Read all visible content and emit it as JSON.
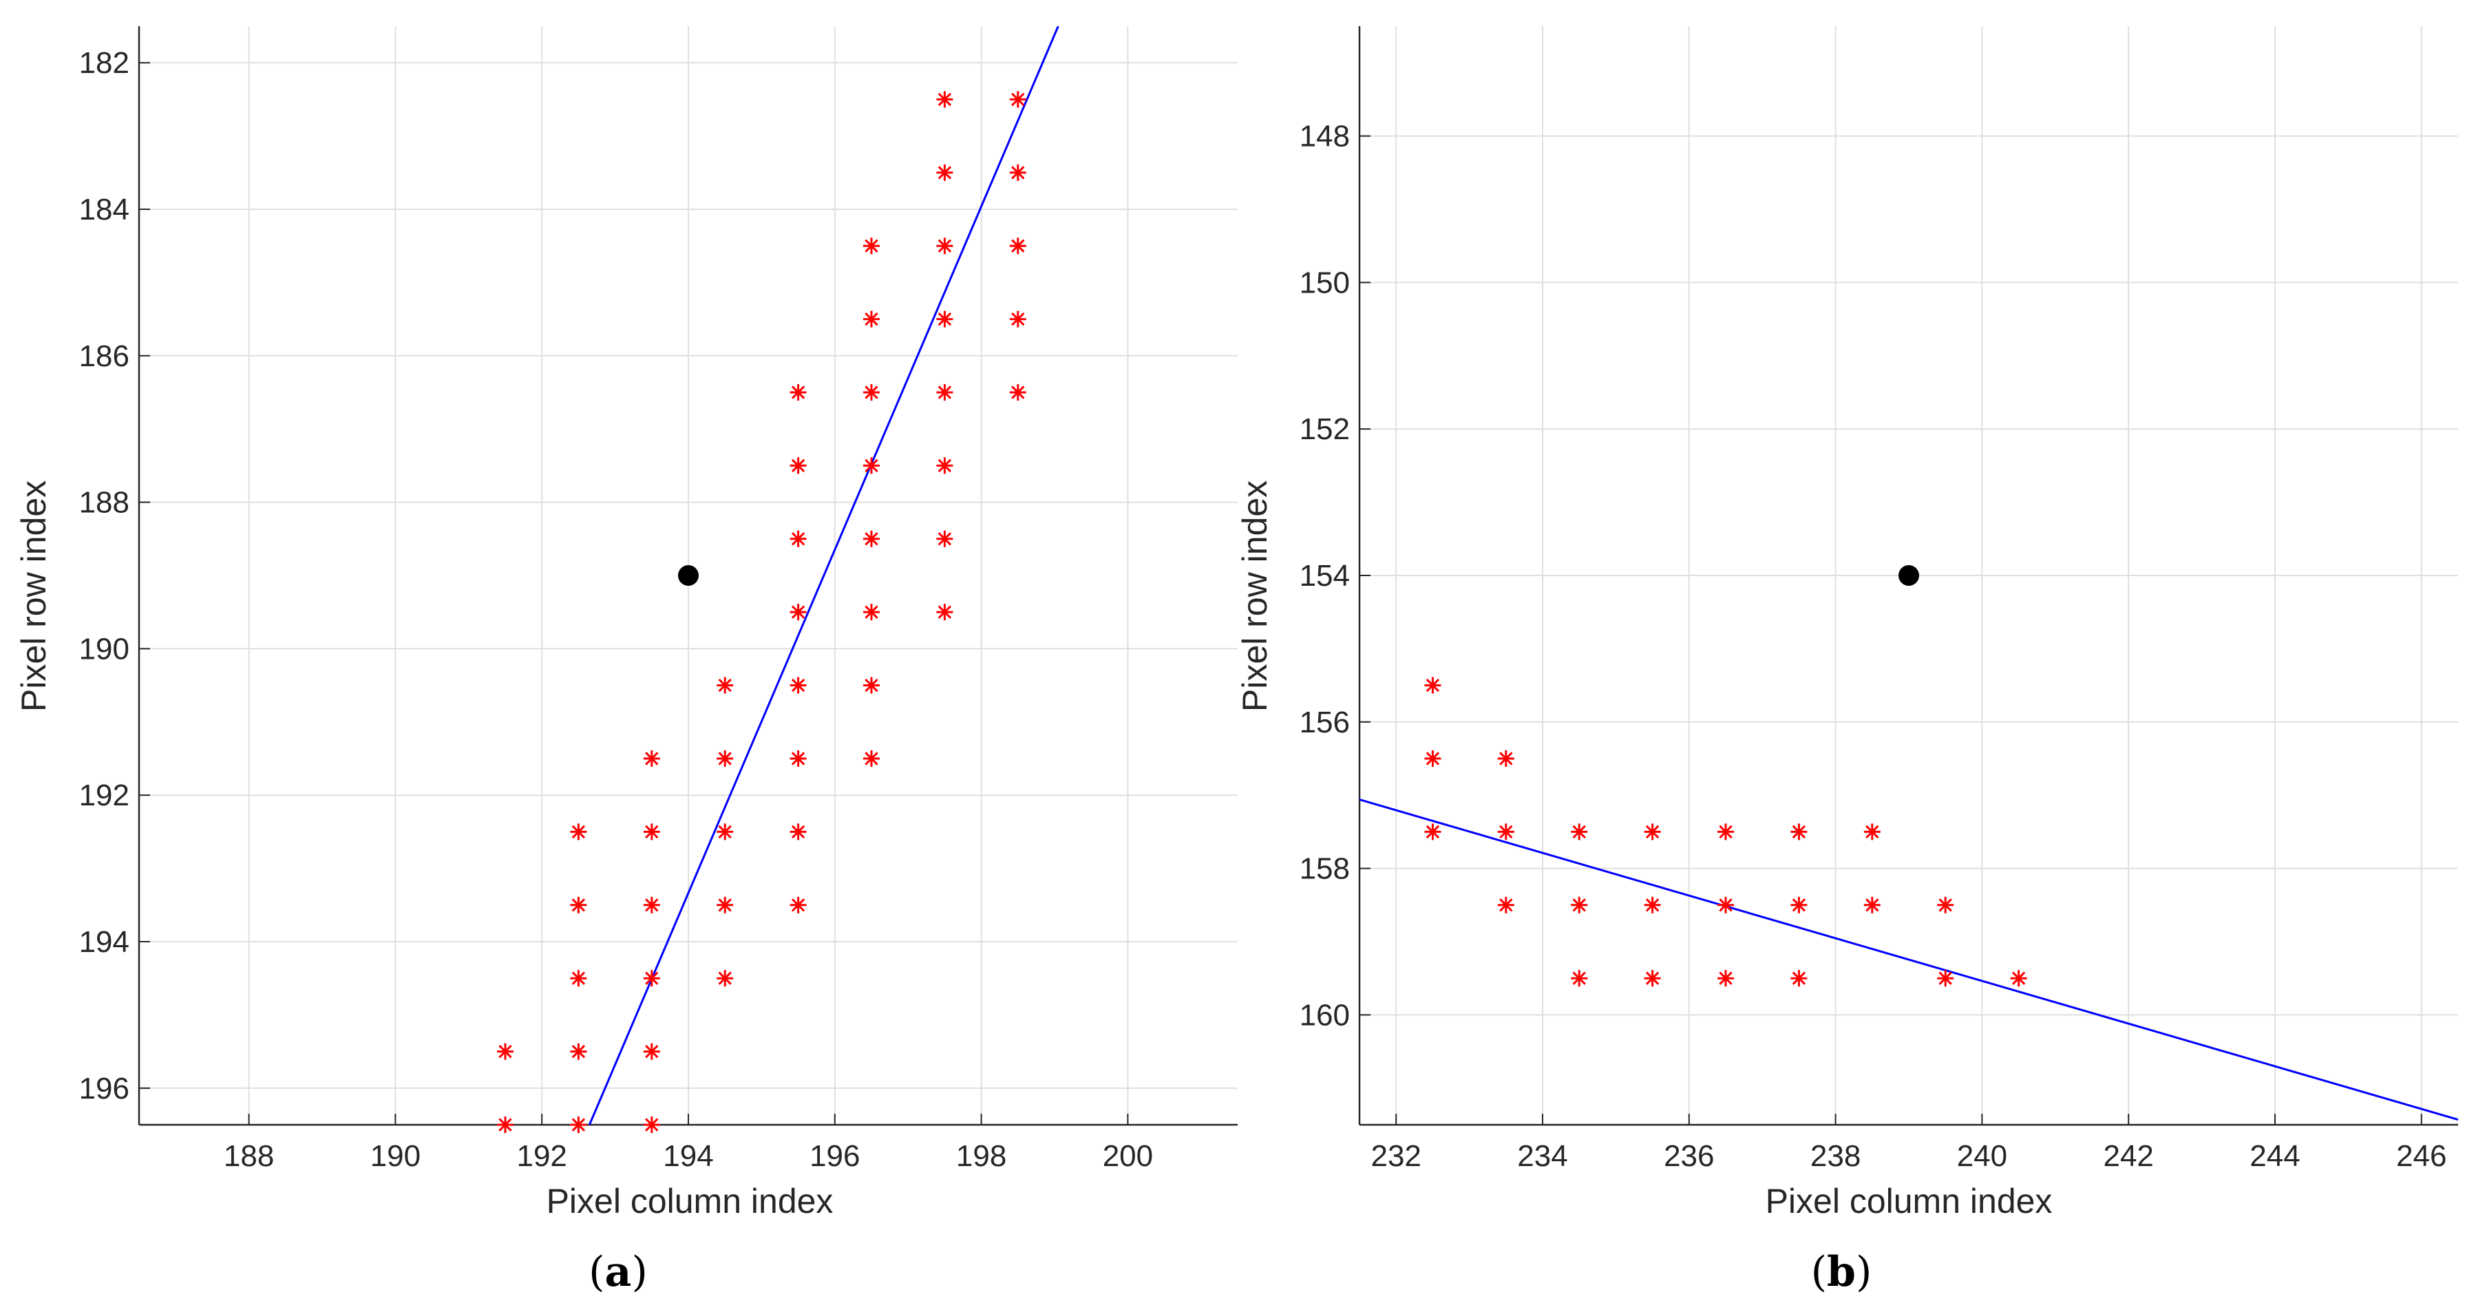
{
  "chart_data": [
    {
      "type": "scatter",
      "caption": {
        "open": "(",
        "letter": "a",
        "close": ")"
      },
      "xlabel": "Pixel column index",
      "ylabel": "Pixel row index",
      "xlim": [
        186.5,
        201.5
      ],
      "ylim": [
        181.5,
        196.5
      ],
      "y_reversed": true,
      "xticks": [
        188,
        190,
        192,
        194,
        196,
        198,
        200
      ],
      "yticks": [
        182,
        184,
        186,
        188,
        190,
        192,
        194,
        196
      ],
      "grid": true,
      "series": [
        {
          "name": "edge pixels",
          "marker": "asterisk",
          "color": "#ff0000",
          "points": [
            [
              197.5,
              182.5
            ],
            [
              198.5,
              182.5
            ],
            [
              197.5,
              183.5
            ],
            [
              198.5,
              183.5
            ],
            [
              196.5,
              184.5
            ],
            [
              197.5,
              184.5
            ],
            [
              198.5,
              184.5
            ],
            [
              196.5,
              185.5
            ],
            [
              197.5,
              185.5
            ],
            [
              198.5,
              185.5
            ],
            [
              195.5,
              186.5
            ],
            [
              196.5,
              186.5
            ],
            [
              197.5,
              186.5
            ],
            [
              198.5,
              186.5
            ],
            [
              195.5,
              187.5
            ],
            [
              196.5,
              187.5
            ],
            [
              197.5,
              187.5
            ],
            [
              195.5,
              188.5
            ],
            [
              196.5,
              188.5
            ],
            [
              197.5,
              188.5
            ],
            [
              195.5,
              189.5
            ],
            [
              196.5,
              189.5
            ],
            [
              197.5,
              189.5
            ],
            [
              194.5,
              190.5
            ],
            [
              195.5,
              190.5
            ],
            [
              196.5,
              190.5
            ],
            [
              193.5,
              191.5
            ],
            [
              194.5,
              191.5
            ],
            [
              195.5,
              191.5
            ],
            [
              196.5,
              191.5
            ],
            [
              192.5,
              192.5
            ],
            [
              193.5,
              192.5
            ],
            [
              194.5,
              192.5
            ],
            [
              195.5,
              192.5
            ],
            [
              192.5,
              193.5
            ],
            [
              193.5,
              193.5
            ],
            [
              194.5,
              193.5
            ],
            [
              195.5,
              193.5
            ],
            [
              192.5,
              194.5
            ],
            [
              193.5,
              194.5
            ],
            [
              194.5,
              194.5
            ],
            [
              191.5,
              195.5
            ],
            [
              192.5,
              195.5
            ],
            [
              193.5,
              195.5
            ],
            [
              191.5,
              196.5
            ],
            [
              192.5,
              196.5
            ],
            [
              193.5,
              196.5
            ]
          ]
        },
        {
          "name": "fitted line",
          "type": "line",
          "color": "#0000ff",
          "points": [
            [
              192.65,
              196.5
            ],
            [
              199.05,
              181.5
            ]
          ]
        },
        {
          "name": "center",
          "marker": "dot",
          "color": "#000000",
          "points": [
            [
              194.0,
              189.0
            ]
          ]
        }
      ]
    },
    {
      "type": "scatter",
      "caption": {
        "open": "(",
        "letter": "b",
        "close": ")"
      },
      "xlabel": "Pixel column index",
      "ylabel": "Pixel row index",
      "xlim": [
        231.5,
        246.5
      ],
      "ylim": [
        146.5,
        161.5
      ],
      "y_reversed": true,
      "xticks": [
        232,
        234,
        236,
        238,
        240,
        242,
        244,
        246
      ],
      "yticks": [
        148,
        150,
        152,
        154,
        156,
        158,
        160
      ],
      "grid": true,
      "series": [
        {
          "name": "edge pixels",
          "marker": "asterisk",
          "color": "#ff0000",
          "points": [
            [
              232.5,
              155.5
            ],
            [
              232.5,
              156.5
            ],
            [
              233.5,
              156.5
            ],
            [
              232.5,
              157.5
            ],
            [
              233.5,
              157.5
            ],
            [
              234.5,
              157.5
            ],
            [
              235.5,
              157.5
            ],
            [
              236.5,
              157.5
            ],
            [
              237.5,
              157.5
            ],
            [
              238.5,
              157.5
            ],
            [
              233.5,
              158.5
            ],
            [
              234.5,
              158.5
            ],
            [
              235.5,
              158.5
            ],
            [
              236.5,
              158.5
            ],
            [
              237.5,
              158.5
            ],
            [
              238.5,
              158.5
            ],
            [
              239.5,
              158.5
            ],
            [
              234.5,
              159.5
            ],
            [
              235.5,
              159.5
            ],
            [
              236.5,
              159.5
            ],
            [
              237.5,
              159.5
            ],
            [
              239.5,
              159.5
            ],
            [
              240.5,
              159.5
            ]
          ]
        },
        {
          "name": "fitted line",
          "type": "line",
          "color": "#0000ff",
          "points": [
            [
              231.5,
              157.06
            ],
            [
              246.5,
              161.43
            ]
          ]
        },
        {
          "name": "center",
          "marker": "dot",
          "color": "#000000",
          "points": [
            [
              239.0,
              154.0
            ]
          ]
        }
      ]
    }
  ]
}
